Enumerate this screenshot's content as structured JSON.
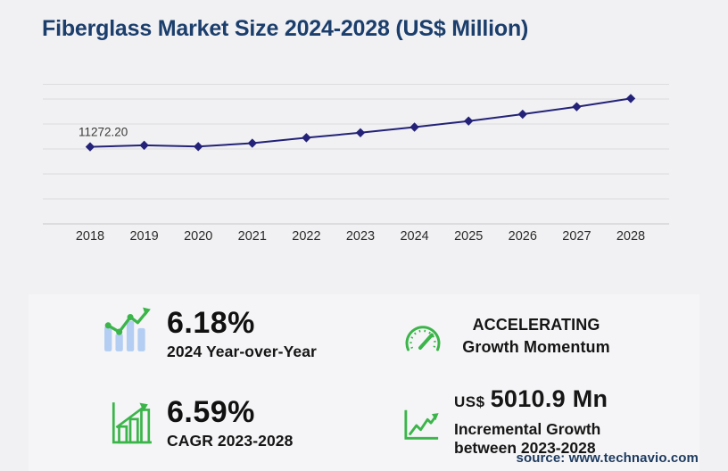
{
  "page": {
    "title": "Fiberglass Market Size 2024-2028 (US$ Million)",
    "source": "source: www.technavio.com"
  },
  "chart_data": {
    "type": "line",
    "title": "Fiberglass Market Size 2024-2028 (US$ Million)",
    "x": [
      "2018",
      "2019",
      "2020",
      "2021",
      "2022",
      "2023",
      "2024",
      "2025",
      "2026",
      "2027",
      "2028"
    ],
    "values": [
      11272.2,
      11500,
      11310,
      11806,
      12607,
      13334.4,
      14158.5,
      15050,
      16043,
      17135,
      18345.3
    ],
    "data_label": {
      "x": "2018",
      "text": "11272.20"
    },
    "xlabel": "",
    "ylabel": "",
    "ylim": [
      0,
      21660
    ],
    "grid": "horizontal",
    "legend": "none",
    "marker": "diamond",
    "line_color": "#232278",
    "gridline_color": "#dcdcdf",
    "axis_color": "#c7c7cb"
  },
  "stats": {
    "yoy": {
      "value": "6.18%",
      "label": "2024 Year-over-Year"
    },
    "momentum": {
      "line1": "ACCELERATING",
      "line2": "Growth Momentum"
    },
    "cagr": {
      "value": "6.59%",
      "label": "CAGR 2023-2028"
    },
    "incremental": {
      "currency": "US$",
      "value": "5010.9 Mn",
      "line1": "Incremental Growth",
      "line2": "between 2023-2028"
    }
  },
  "colors": {
    "title_navy": "#1b3e6c",
    "line_navy": "#232278",
    "icon_green": "#3bb54a",
    "icon_bar_blue": "#b3cef2",
    "panel_bg": "#f5f5f7",
    "page_bg": "#f1f1f3"
  }
}
